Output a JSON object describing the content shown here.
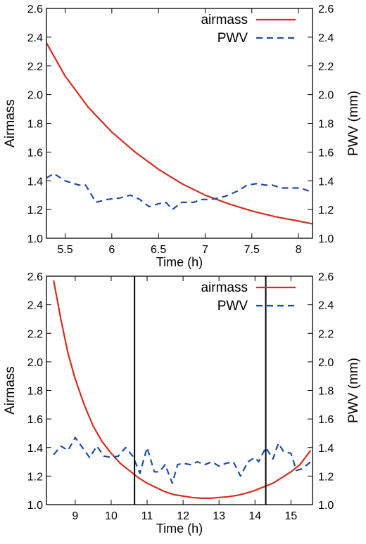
{
  "chart_data": [
    {
      "type": "line",
      "xlabel": "Time (h)",
      "ylabel": "Airmass",
      "y2label": "PWV (mm)",
      "xlim": [
        5.3,
        8.15
      ],
      "ylim": [
        1.0,
        2.6
      ],
      "y2lim": [
        1.0,
        2.6
      ],
      "xticks": [
        5.5,
        6,
        6.5,
        7,
        7.5,
        8
      ],
      "xtick_labels": [
        "5.5",
        "6",
        "6.5",
        "7",
        "7.5",
        "8"
      ],
      "yticks": [
        1.0,
        1.2,
        1.4,
        1.6,
        1.8,
        2.0,
        2.2,
        2.4,
        2.6
      ],
      "ytick_labels": [
        "1.0",
        "1.2",
        "1.4",
        "1.6",
        "1.8",
        "2.0",
        "2.2",
        "2.4",
        "2.6"
      ],
      "y2ticks": [
        1.0,
        1.2,
        1.4,
        1.6,
        1.8,
        2.0,
        2.2,
        2.4,
        2.6
      ],
      "y2tick_labels": [
        "1.0",
        "1.2",
        "1.4",
        "1.6",
        "1.8",
        "2.0",
        "2.2",
        "2.4",
        "2.6"
      ],
      "legend_position": "top-right",
      "vlines": [],
      "series": [
        {
          "name": "airmass",
          "style": "solid",
          "color": "#d62d20",
          "x": [
            5.3,
            5.5,
            5.75,
            6.0,
            6.25,
            6.5,
            6.75,
            7.0,
            7.25,
            7.5,
            7.75,
            8.0,
            8.15
          ],
          "y": [
            2.36,
            2.13,
            1.91,
            1.74,
            1.6,
            1.48,
            1.38,
            1.3,
            1.24,
            1.19,
            1.15,
            1.12,
            1.1
          ]
        },
        {
          "name": "PWV",
          "style": "dashed",
          "color": "#1f4e9e",
          "x": [
            5.3,
            5.38,
            5.5,
            5.65,
            5.72,
            5.83,
            5.95,
            6.08,
            6.2,
            6.3,
            6.4,
            6.5,
            6.58,
            6.65,
            6.75,
            6.88,
            6.95,
            7.05,
            7.15,
            7.25,
            7.35,
            7.45,
            7.55,
            7.65,
            7.72,
            7.82,
            7.92,
            8.02,
            8.15
          ],
          "y": [
            1.42,
            1.45,
            1.4,
            1.37,
            1.37,
            1.25,
            1.27,
            1.28,
            1.3,
            1.27,
            1.22,
            1.24,
            1.25,
            1.2,
            1.25,
            1.25,
            1.27,
            1.27,
            1.28,
            1.3,
            1.33,
            1.37,
            1.38,
            1.37,
            1.37,
            1.35,
            1.35,
            1.35,
            1.32
          ]
        }
      ]
    },
    {
      "type": "line",
      "xlabel": "Time (h)",
      "ylabel": "Airmass",
      "y2label": "PWV (mm)",
      "xlim": [
        8.2,
        15.6
      ],
      "ylim": [
        1.0,
        2.6
      ],
      "y2lim": [
        1.0,
        2.6
      ],
      "xticks": [
        9,
        10,
        11,
        12,
        13,
        14,
        15
      ],
      "xtick_labels": [
        "9",
        "10",
        "11",
        "12",
        "13",
        "14",
        "15"
      ],
      "yticks": [
        1.0,
        1.2,
        1.4,
        1.6,
        1.8,
        2.0,
        2.2,
        2.4,
        2.6
      ],
      "ytick_labels": [
        "1.0",
        "1.2",
        "1.4",
        "1.6",
        "1.8",
        "2.0",
        "2.2",
        "2.4",
        "2.6"
      ],
      "y2ticks": [
        1.0,
        1.2,
        1.4,
        1.6,
        1.8,
        2.0,
        2.2,
        2.4,
        2.6
      ],
      "y2tick_labels": [
        "1.0",
        "1.2",
        "1.4",
        "1.6",
        "1.8",
        "2.0",
        "2.2",
        "2.4",
        "2.6"
      ],
      "legend_position": "top-right",
      "vlines": [
        10.65,
        14.3
      ],
      "series": [
        {
          "name": "airmass",
          "style": "solid",
          "color": "#d62d20",
          "x": [
            8.4,
            8.6,
            8.8,
            9.0,
            9.25,
            9.5,
            9.75,
            10.0,
            10.25,
            10.5,
            10.75,
            11.0,
            11.25,
            11.5,
            11.75,
            12.0,
            12.25,
            12.5,
            12.75,
            13.0,
            13.25,
            13.5,
            13.75,
            14.0,
            14.25,
            14.5,
            14.75,
            15.0,
            15.25,
            15.55
          ],
          "y": [
            2.57,
            2.3,
            2.06,
            1.88,
            1.7,
            1.55,
            1.44,
            1.36,
            1.29,
            1.24,
            1.19,
            1.15,
            1.12,
            1.09,
            1.07,
            1.06,
            1.05,
            1.045,
            1.045,
            1.05,
            1.055,
            1.065,
            1.08,
            1.1,
            1.125,
            1.15,
            1.19,
            1.23,
            1.28,
            1.38
          ]
        },
        {
          "name": "PWV",
          "style": "dashed",
          "color": "#1f4e9e",
          "x": [
            8.4,
            8.6,
            8.8,
            9.0,
            9.2,
            9.4,
            9.6,
            9.8,
            10.0,
            10.2,
            10.4,
            10.6,
            10.8,
            11.0,
            11.2,
            11.35,
            11.5,
            11.7,
            11.85,
            12.0,
            12.2,
            12.4,
            12.6,
            12.8,
            13.0,
            13.2,
            13.4,
            13.6,
            13.8,
            14.0,
            14.1,
            14.3,
            14.5,
            14.65,
            14.8,
            15.0,
            15.15,
            15.3,
            15.55
          ],
          "y": [
            1.35,
            1.41,
            1.38,
            1.47,
            1.4,
            1.33,
            1.41,
            1.34,
            1.33,
            1.34,
            1.4,
            1.34,
            1.22,
            1.4,
            1.23,
            1.23,
            1.28,
            1.15,
            1.28,
            1.29,
            1.28,
            1.3,
            1.28,
            1.3,
            1.27,
            1.29,
            1.3,
            1.2,
            1.3,
            1.33,
            1.3,
            1.4,
            1.32,
            1.43,
            1.37,
            1.36,
            1.24,
            1.25,
            1.3
          ]
        }
      ]
    }
  ]
}
